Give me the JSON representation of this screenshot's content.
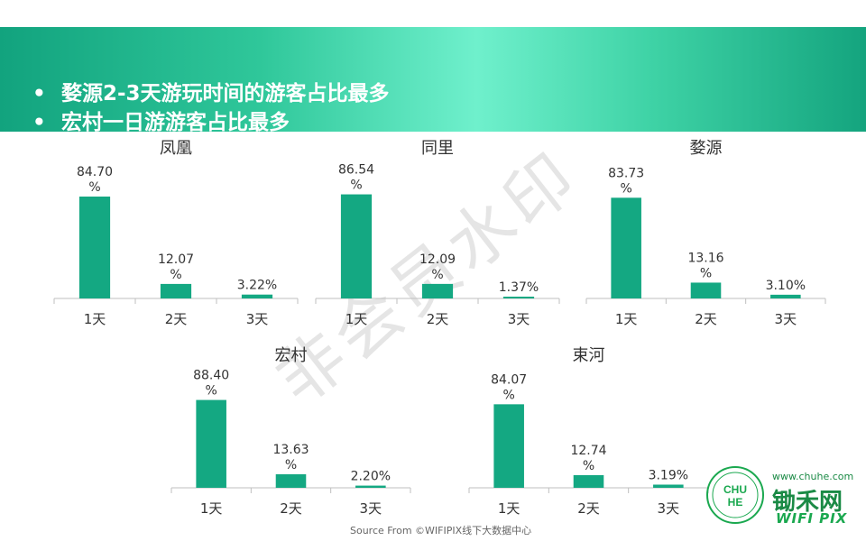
{
  "header": {
    "bullets": [
      "婺源2-3天游玩时间的游客占比最多",
      "宏村一日游游客占比最多"
    ],
    "bullet_symbol": "•"
  },
  "colors": {
    "bar": "#14a882",
    "banner": "#1db58a",
    "axis": "#bfbfbf"
  },
  "chart_data": [
    {
      "type": "bar",
      "title": "凤凰",
      "categories": [
        "1天",
        "2天",
        "3天"
      ],
      "values": [
        84.7,
        12.07,
        3.22
      ],
      "labels": [
        [
          "84.70",
          "%"
        ],
        [
          "12.07",
          "%"
        ],
        [
          "3.22%"
        ]
      ],
      "ylim": [
        0,
        100
      ]
    },
    {
      "type": "bar",
      "title": "同里",
      "categories": [
        "1天",
        "2天",
        "3天"
      ],
      "values": [
        86.54,
        12.09,
        1.37
      ],
      "labels": [
        [
          "86.54",
          "%"
        ],
        [
          "12.09",
          "%"
        ],
        [
          "1.37%"
        ]
      ],
      "ylim": [
        0,
        100
      ]
    },
    {
      "type": "bar",
      "title": "婺源",
      "categories": [
        "1天",
        "2天",
        "3天"
      ],
      "values": [
        83.73,
        13.16,
        3.1
      ],
      "labels": [
        [
          "83.73",
          "%"
        ],
        [
          "13.16",
          "%"
        ],
        [
          "3.10%"
        ]
      ],
      "ylim": [
        0,
        100
      ]
    },
    {
      "type": "bar",
      "title": "宏村",
      "categories": [
        "1天",
        "2天",
        "3天"
      ],
      "values": [
        88.4,
        13.63,
        2.2
      ],
      "labels": [
        [
          "88.40",
          "%"
        ],
        [
          "13.63",
          "%"
        ],
        [
          "2.20%"
        ]
      ],
      "ylim": [
        0,
        100
      ]
    },
    {
      "type": "bar",
      "title": "束河",
      "categories": [
        "1天",
        "2天",
        "3天"
      ],
      "values": [
        84.07,
        12.74,
        3.19
      ],
      "labels": [
        [
          "84.07",
          "%"
        ],
        [
          "12.74",
          "%"
        ],
        [
          "3.19%"
        ]
      ],
      "ylim": [
        0,
        100
      ]
    }
  ],
  "watermark": "非会员水印",
  "source": "Source From ©WIFIPIX线下大数据中心",
  "logo": {
    "url": "www.chuhe.com",
    "brand": "锄禾网",
    "sub": "WIFI PIX",
    "emblem_text": "CHU HE"
  }
}
